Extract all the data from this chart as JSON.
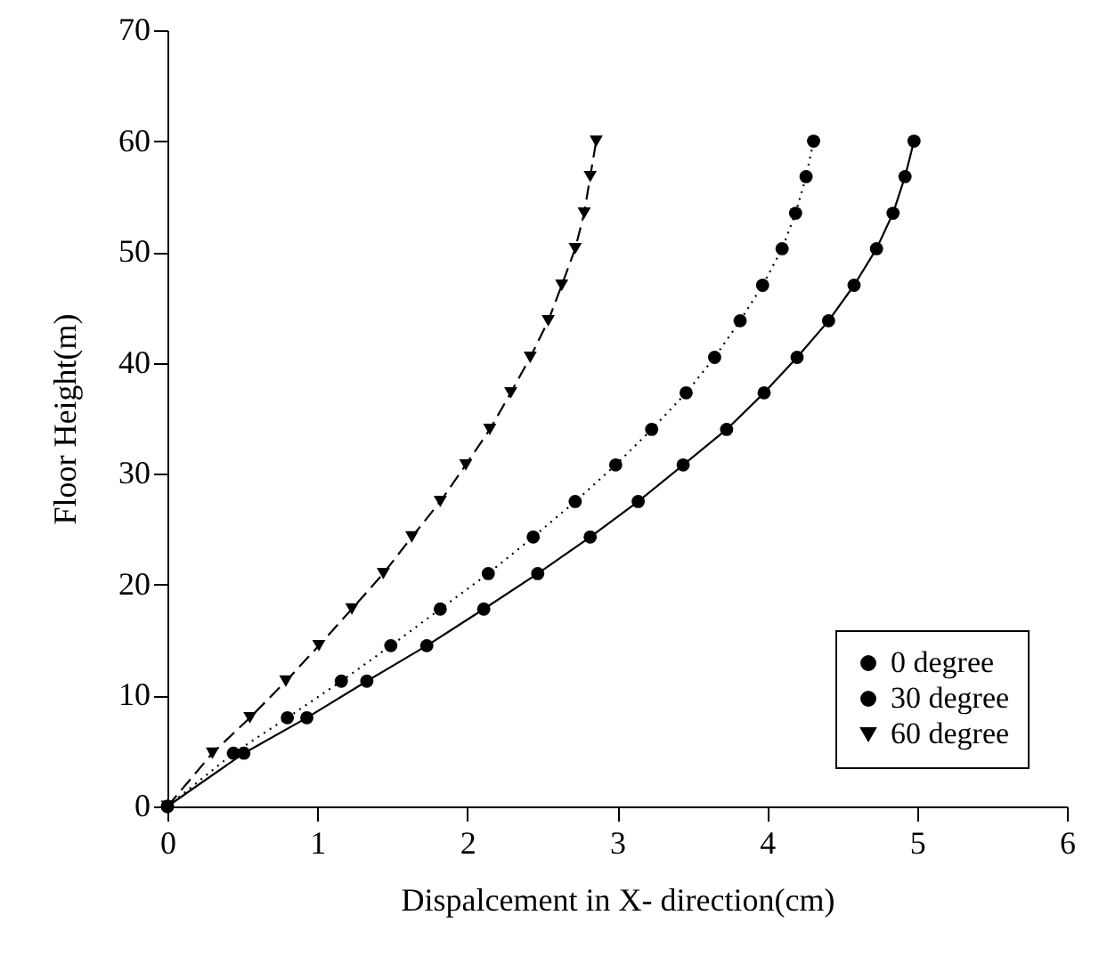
{
  "chart_data": {
    "type": "line",
    "xlabel": "Dispalcement in X- direction(cm)",
    "ylabel": "Floor Height(m)",
    "xlim": [
      0,
      6
    ],
    "xticks": [
      0,
      1,
      2,
      3,
      4,
      5,
      6
    ],
    "ylim": [
      0,
      70
    ],
    "yticks": [
      0,
      10,
      20,
      30,
      40,
      50,
      60,
      70
    ],
    "grid": false,
    "legend": "bottom right",
    "series": [
      {
        "name": "0 degree",
        "color": "#000000",
        "marker": "circle",
        "line_style": "solid",
        "x": [
          0,
          0.51,
          0.93,
          1.33,
          1.73,
          2.11,
          2.47,
          2.82,
          3.14,
          3.44,
          3.73,
          3.98,
          4.2,
          4.41,
          4.58,
          4.73,
          4.84,
          4.92,
          4.98
        ],
        "values": [
          0,
          4.8,
          8.0,
          11.3,
          14.5,
          17.8,
          21.0,
          24.3,
          27.5,
          30.8,
          34.0,
          37.3,
          40.5,
          43.8,
          47.0,
          50.3,
          53.5,
          56.8,
          60.0
        ]
      },
      {
        "name": "30 degree",
        "color": "#000000",
        "marker": "circle",
        "line_style": "dotted",
        "x": [
          0,
          0.44,
          0.8,
          1.16,
          1.49,
          1.82,
          2.14,
          2.44,
          2.72,
          2.99,
          3.23,
          3.46,
          3.65,
          3.82,
          3.97,
          4.1,
          4.19,
          4.26,
          4.31
        ],
        "values": [
          0,
          4.8,
          8.0,
          11.3,
          14.5,
          17.8,
          21.0,
          24.3,
          27.5,
          30.8,
          34.0,
          37.3,
          40.5,
          43.8,
          47.0,
          50.3,
          53.5,
          56.8,
          60.0
        ]
      },
      {
        "name": "60 degree",
        "color": "#000000",
        "marker": "triangle",
        "line_style": "dashed",
        "x": [
          0,
          0.3,
          0.55,
          0.79,
          1.01,
          1.23,
          1.44,
          1.63,
          1.82,
          1.99,
          2.15,
          2.29,
          2.42,
          2.54,
          2.63,
          2.72,
          2.78,
          2.82,
          2.86
        ],
        "values": [
          0,
          4.8,
          8.0,
          11.3,
          14.5,
          17.8,
          21.0,
          24.3,
          27.5,
          30.8,
          34.0,
          37.3,
          40.5,
          43.8,
          47.0,
          50.3,
          53.5,
          56.8,
          60.0
        ]
      }
    ]
  }
}
